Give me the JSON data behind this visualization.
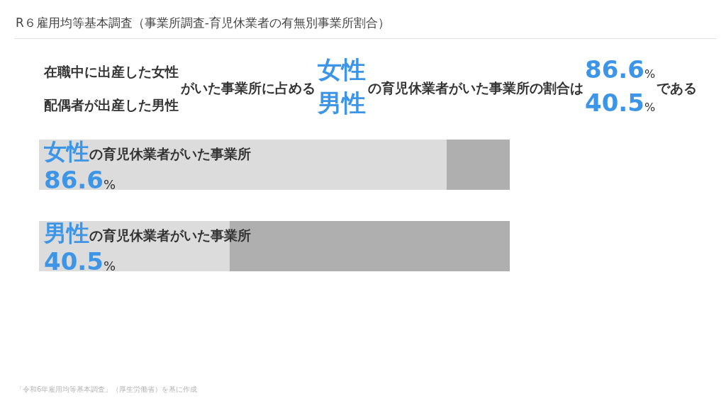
{
  "chart_data": {
    "type": "bar",
    "title": "R６雇用均等基本調査（事業所調査-育児休業者の有無別事業所割合）",
    "orientation": "horizontal",
    "stacked": true,
    "categories": [
      "女性の育児休業者がいた事業所",
      "男性の育児休業者がいた事業所"
    ],
    "series": [
      {
        "color": "#dcdcdc",
        "values": [
          86.6,
          40.5
        ],
        "value_labels": [
          "86.6%",
          "40.5%"
        ]
      },
      {
        "color": "#afafaf",
        "values": [
          13.4,
          59.5
        ]
      }
    ],
    "xlim": [
      0,
      100
    ],
    "annotations": [
      "在職中に出産した女性",
      "配偶者が出産した男性",
      "がいた事業所に占める",
      "女性",
      "男性",
      "の育児休業者がいた事業所の割合は",
      "86.6%",
      "40.5%",
      "である",
      "「令和6年雇用均等基本調査」（厚生労働省）を基に作成"
    ]
  }
}
